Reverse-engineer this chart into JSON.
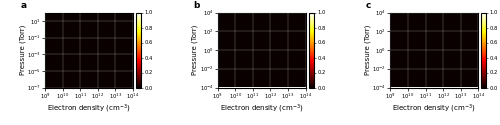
{
  "panels": [
    {
      "label": "a",
      "ne_log_min": 9,
      "ne_log_max": 14,
      "p_log_min": -7,
      "p_log_max": 2,
      "log_C": 7.5,
      "sharpness": 1.5
    },
    {
      "label": "b",
      "ne_log_min": 9,
      "ne_log_max": 14,
      "p_log_min": -4,
      "p_log_max": 4,
      "log_C": 5.0,
      "sharpness": 1.5
    },
    {
      "label": "c",
      "ne_log_min": 9,
      "ne_log_max": 14,
      "p_log_min": -4,
      "p_log_max": 4,
      "log_C": 3.0,
      "sharpness": 1.5
    }
  ],
  "xlabel": "Electron density (cm$^{-3}$)",
  "ylabel": "Pressure (Torr)",
  "cbar_ticks": [
    0,
    0.2,
    0.4,
    0.6,
    0.8,
    1.0
  ],
  "grid_color": "white",
  "grid_alpha": 0.5,
  "grid_lw": 0.3,
  "label_fontsize": 5.0,
  "tick_fontsize": 3.8,
  "panel_label_fontsize": 6.5,
  "cbar_tick_fontsize": 3.8,
  "fig_width": 5.0,
  "fig_height": 1.25,
  "dpi": 100
}
